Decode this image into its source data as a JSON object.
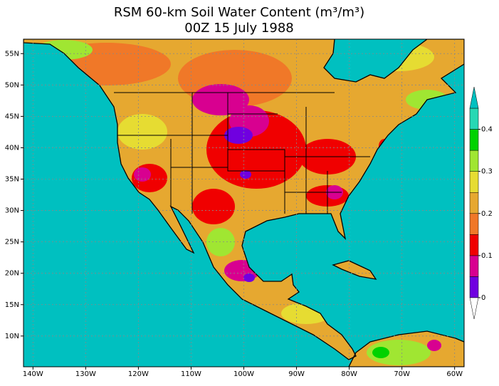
{
  "title": "RSM 60-km Soil Water Content (m³/m³)",
  "subtitle": "00Z 15 July 1988",
  "map": {
    "xlim": [
      -141.8,
      -58.2
    ],
    "ylim": [
      5.1,
      57.3
    ],
    "grid": true,
    "ocean_color": "#00c0c0",
    "lon_ticks": [
      {
        "value": -140,
        "label": "140W"
      },
      {
        "value": -130,
        "label": "130W"
      },
      {
        "value": -120,
        "label": "120W"
      },
      {
        "value": -110,
        "label": "110W"
      },
      {
        "value": -100,
        "label": "100W"
      },
      {
        "value": -90,
        "label": "90W"
      },
      {
        "value": -80,
        "label": "80W"
      },
      {
        "value": -70,
        "label": "70W"
      },
      {
        "value": -60,
        "label": "60W"
      }
    ],
    "lat_ticks": [
      {
        "value": 10,
        "label": "10N"
      },
      {
        "value": 15,
        "label": "15N"
      },
      {
        "value": 20,
        "label": "20N"
      },
      {
        "value": 25,
        "label": "25N"
      },
      {
        "value": 30,
        "label": "30N"
      },
      {
        "value": 35,
        "label": "35N"
      },
      {
        "value": 40,
        "label": "40N"
      },
      {
        "value": 45,
        "label": "45N"
      },
      {
        "value": 50,
        "label": "50N"
      },
      {
        "value": 55,
        "label": "55N"
      }
    ]
  },
  "colorbar": {
    "levels": [
      0,
      0.05,
      0.1,
      0.15,
      0.2,
      0.25,
      0.3,
      0.35,
      0.4,
      0.45
    ],
    "colors": [
      "#7000e0",
      "#d80090",
      "#f00000",
      "#f07828",
      "#e6a830",
      "#e6dc32",
      "#a0e632",
      "#00d200",
      "#28d8b4"
    ],
    "under_color": "#ffffff",
    "over_color": "#00c0c0",
    "lim": [
      0,
      0.45
    ],
    "ticks": [
      0,
      0.1,
      0.2,
      0.3,
      0.4
    ]
  }
}
